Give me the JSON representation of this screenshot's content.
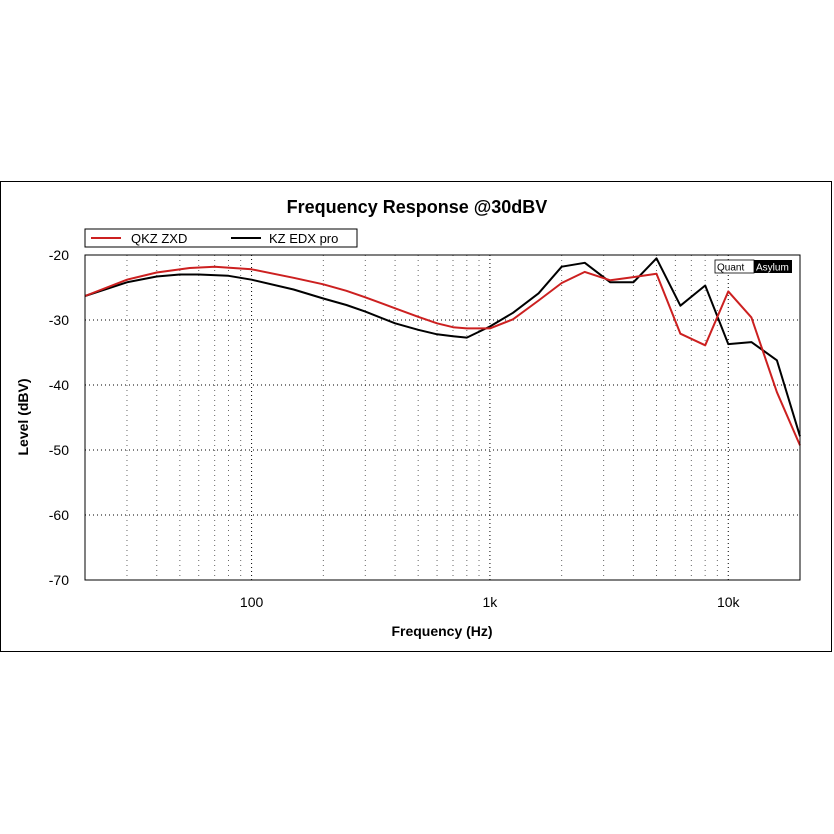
{
  "chart_data": {
    "type": "line",
    "title": "Frequency Response @30dBV",
    "xlabel": "Frequency (Hz)",
    "ylabel": "Level (dBV)",
    "x_scale": "log",
    "xlim": [
      20,
      20000
    ],
    "ylim": [
      -70,
      -20
    ],
    "x_ticks": [
      {
        "value": 100,
        "label": "100"
      },
      {
        "value": 1000,
        "label": "1k"
      },
      {
        "value": 10000,
        "label": "10k"
      }
    ],
    "y_ticks": [
      {
        "value": -20,
        "label": "-20"
      },
      {
        "value": -30,
        "label": "-30"
      },
      {
        "value": -40,
        "label": "-40"
      },
      {
        "value": -50,
        "label": "-50"
      },
      {
        "value": -60,
        "label": "-60"
      },
      {
        "value": -70,
        "label": "-70"
      }
    ],
    "grid": true,
    "legend_position": "top-left",
    "brand_left": "Quant",
    "brand_right": "Asylum",
    "series": [
      {
        "name": "QKZ ZXD",
        "color": "#cc2020",
        "x": [
          20,
          30,
          40,
          55,
          70,
          100,
          150,
          200,
          250,
          300,
          400,
          500,
          600,
          700,
          800,
          1000,
          1250,
          1600,
          2000,
          2500,
          3200,
          4000,
          5000,
          6300,
          8000,
          10000,
          12500,
          16000,
          20000
        ],
        "y": [
          -26.3,
          -23.8,
          -22.7,
          -22.0,
          -21.8,
          -22.2,
          -23.5,
          -24.5,
          -25.5,
          -26.5,
          -28.2,
          -29.5,
          -30.5,
          -31.1,
          -31.3,
          -31.3,
          -29.9,
          -27.0,
          -24.3,
          -22.6,
          -23.9,
          -23.4,
          -22.9,
          -32.1,
          -33.9,
          -25.6,
          -29.6,
          -41.1,
          -49.3
        ]
      },
      {
        "name": "KZ EDX pro",
        "color": "#000000",
        "x": [
          20,
          30,
          40,
          50,
          60,
          80,
          100,
          150,
          200,
          250,
          300,
          400,
          500,
          600,
          700,
          800,
          1000,
          1250,
          1600,
          2000,
          2500,
          3200,
          4000,
          5000,
          6300,
          8000,
          10000,
          12500,
          16000,
          20000
        ],
        "y": [
          -26.3,
          -24.2,
          -23.3,
          -23.0,
          -23.0,
          -23.2,
          -23.8,
          -25.3,
          -26.7,
          -27.7,
          -28.7,
          -30.5,
          -31.5,
          -32.2,
          -32.5,
          -32.7,
          -31.0,
          -28.9,
          -25.9,
          -21.8,
          -21.2,
          -24.2,
          -24.2,
          -20.5,
          -27.8,
          -24.7,
          -33.7,
          -33.4,
          -36.2,
          -47.9
        ]
      }
    ]
  }
}
